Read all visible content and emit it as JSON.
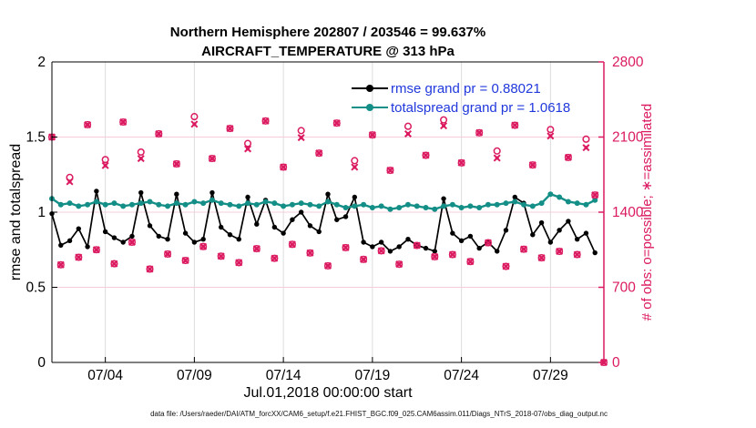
{
  "title": {
    "line1": "Northern Hemisphere 202807 / 203546 = 99.637%",
    "line2": "AIRCRAFT_TEMPERATURE @ 313 hPa"
  },
  "axes": {
    "left": {
      "label": "rmse and totalspread",
      "ticks": [
        "0",
        "0.5",
        "1",
        "1.5",
        "2"
      ],
      "tick_values": [
        0,
        0.5,
        1,
        1.5,
        2
      ],
      "range": [
        0,
        2
      ],
      "color": "#000000"
    },
    "right": {
      "label": "# of obs: o=possible; ∗=assimilated",
      "ticks": [
        "0",
        "700",
        "1400",
        "2100",
        "2800"
      ],
      "tick_values": [
        0,
        700,
        1400,
        2100,
        2800
      ],
      "range": [
        0,
        2800
      ],
      "color": "#DB1A60"
    },
    "x": {
      "label": "Jul.01,2018 00:00:00 start",
      "tick_labels": [
        "07/04",
        "07/09",
        "07/14",
        "07/19",
        "07/24",
        "07/29"
      ],
      "tick_days": [
        3,
        8,
        13,
        18,
        23,
        28
      ],
      "range_days": [
        0,
        31
      ]
    }
  },
  "legend": [
    {
      "label": "rmse grand pr = 0.88021",
      "color": "#000000"
    },
    {
      "label": "totalspread grand pr = 1.0618",
      "color": "#148F87"
    }
  ],
  "footer": "data file: /Users/raeder/DAI/ATM_forcXX/CAM6_setup/f.e21.FHIST_BGC.f09_025.CAM6assim.011/Diags_NTrS_2018-07/obs_diag_output.nc",
  "colors": {
    "crimson": "#DB1A60",
    "teal": "#148F87",
    "black": "#000000",
    "legend_text": "#2038DC",
    "grid_vertical": "#DCDCDC",
    "grid_horizontal": "#F6CCDB",
    "background": "#FFFFFF"
  },
  "chart_data": {
    "type": "line",
    "title": "Northern Hemisphere 202807 / 203546 = 99.637% | AIRCRAFT_TEMPERATURE @ 313 hPa",
    "xlabel": "Jul.01,2018 00:00:00 start",
    "ylabel_left": "rmse and totalspread",
    "ylabel_right": "# of obs: o=possible; ∗=assimilated",
    "x_start_day": 0,
    "x_spacing_days": 0.5,
    "x_range_days": [
      0,
      31
    ],
    "ylim_left": [
      0,
      2
    ],
    "ylim_right": [
      0,
      2800
    ],
    "grid": true,
    "legend_position": "top-center-inside",
    "series": [
      {
        "name": "rmse",
        "axis": "left",
        "marker": "filled-circle",
        "color": "#000000",
        "values": [
          0.99,
          0.78,
          0.81,
          0.89,
          0.77,
          1.14,
          0.87,
          0.83,
          0.8,
          0.84,
          1.13,
          0.91,
          0.84,
          0.82,
          1.12,
          0.86,
          0.8,
          0.82,
          1.13,
          0.9,
          0.85,
          0.82,
          1.1,
          0.92,
          1.08,
          0.9,
          0.86,
          0.95,
          1.0,
          0.91,
          0.87,
          1.12,
          0.95,
          0.97,
          1.1,
          0.8,
          0.77,
          0.8,
          0.74,
          0.77,
          0.82,
          0.78,
          0.76,
          0.74,
          1.09,
          0.86,
          0.81,
          0.84,
          0.76,
          0.8,
          0.74,
          0.88,
          1.1,
          1.06,
          0.85,
          0.93,
          0.8,
          0.88,
          0.94,
          0.82,
          0.86,
          0.73
        ]
      },
      {
        "name": "totalspread",
        "axis": "left",
        "marker": "filled-circle",
        "color": "#148F87",
        "values": [
          1.09,
          1.05,
          1.06,
          1.04,
          1.05,
          1.07,
          1.05,
          1.06,
          1.04,
          1.05,
          1.06,
          1.07,
          1.05,
          1.04,
          1.06,
          1.05,
          1.07,
          1.06,
          1.08,
          1.06,
          1.05,
          1.04,
          1.06,
          1.05,
          1.07,
          1.06,
          1.04,
          1.05,
          1.06,
          1.05,
          1.04,
          1.07,
          1.05,
          1.03,
          1.04,
          1.05,
          1.03,
          1.04,
          1.02,
          1.03,
          1.05,
          1.04,
          1.03,
          1.02,
          1.04,
          1.05,
          1.03,
          1.04,
          1.03,
          1.05,
          1.05,
          1.06,
          1.07,
          1.05,
          1.04,
          1.06,
          1.12,
          1.1,
          1.07,
          1.06,
          1.05,
          1.08
        ]
      },
      {
        "name": "obs_possible",
        "axis": "right",
        "marker": "o",
        "color": "#DB1A60",
        "values": [
          2100,
          910,
          1724,
          980,
          2215,
          1050,
          1890,
          920,
          2240,
          1120,
          1960,
          870,
          2130,
          1010,
          1850,
          950,
          2290,
          1080,
          1900,
          990,
          2180,
          930,
          2040,
          1060,
          2250,
          970,
          1820,
          1100,
          2160,
          1020,
          1950,
          900,
          2230,
          1070,
          1880,
          960,
          2120,
          1040,
          1790,
          915,
          2200,
          1090,
          1930,
          985,
          2260,
          1005,
          1860,
          940,
          2140,
          1115,
          1970,
          895,
          2210,
          1055,
          1840,
          975,
          2170,
          1035,
          1910,
          1005,
          2080,
          1560,
          0
        ]
      },
      {
        "name": "obs_assimilated",
        "axis": "right",
        "marker": "asterisk",
        "color": "#DB1A60",
        "values": [
          2100,
          910,
          1684,
          980,
          2215,
          1050,
          1835,
          920,
          2240,
          1120,
          1900,
          870,
          2130,
          1010,
          1850,
          950,
          2220,
          1080,
          1900,
          990,
          2180,
          930,
          1990,
          1060,
          2250,
          970,
          1820,
          1100,
          2095,
          1020,
          1950,
          900,
          2230,
          1070,
          1820,
          960,
          2120,
          1040,
          1790,
          915,
          2130,
          1090,
          1930,
          985,
          2205,
          1005,
          1860,
          940,
          2140,
          1115,
          1905,
          895,
          2210,
          1055,
          1840,
          975,
          2110,
          1035,
          1910,
          1005,
          2001,
          1560,
          0
        ]
      }
    ]
  }
}
